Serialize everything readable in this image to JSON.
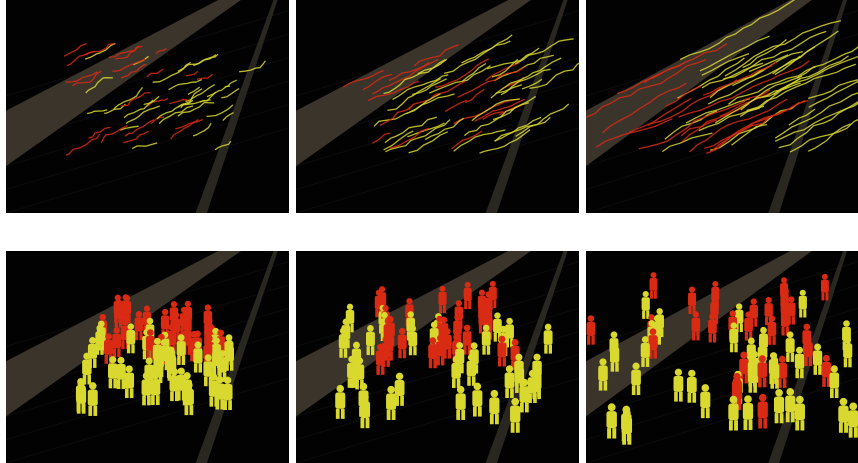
{
  "figure": {
    "rows": [
      {
        "kind": "trajectories",
        "panels": [
          {
            "id": "traj-1",
            "stage": 1
          },
          {
            "id": "traj-2",
            "stage": 2
          },
          {
            "id": "traj-3",
            "stage": 3
          }
        ]
      },
      {
        "kind": "crowd",
        "panels": [
          {
            "id": "crowd-1",
            "stage": 1
          },
          {
            "id": "crowd-2",
            "stage": 2
          },
          {
            "id": "crowd-3",
            "stage": 3
          }
        ]
      }
    ],
    "colors": {
      "background": "#020202",
      "walkway": "#3a342b",
      "group_a": "#d8d82e",
      "group_b": "#d92a14"
    }
  }
}
